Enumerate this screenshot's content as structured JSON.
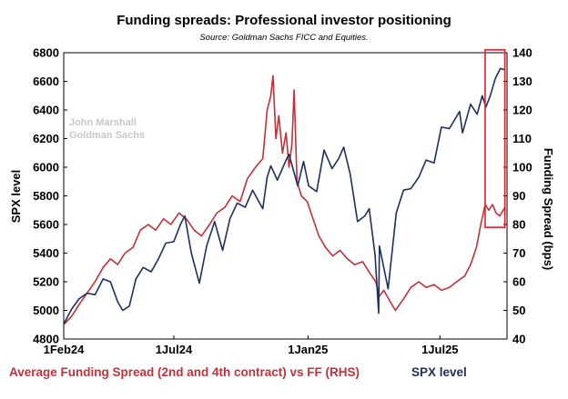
{
  "chart_data": {
    "type": "line",
    "title": "Funding spreads: Professional investor positioning",
    "subtitle": "Source: Goldman Sachs FICC and Equities.",
    "watermark": [
      "John Marshall",
      "Goldman Sachs"
    ],
    "ylabel_left": "SPX level",
    "ylabel_right": "Funding Spread (bps)",
    "ylim_left": [
      4800,
      6800
    ],
    "ylim_right": [
      40,
      140
    ],
    "yticks_left": [
      4800,
      5000,
      5200,
      5400,
      5600,
      5800,
      6000,
      6200,
      6400,
      6600,
      6800
    ],
    "yticks_right": [
      40,
      50,
      60,
      70,
      80,
      90,
      100,
      110,
      120,
      130,
      140
    ],
    "xlim": [
      "2024-02-01",
      "2025-10-01"
    ],
    "xticks": [
      {
        "label": "1Feb24",
        "date": "2024-02-01"
      },
      {
        "label": "1Jul24",
        "date": "2024-07-01"
      },
      {
        "label": "1Jan25",
        "date": "2025-01-01"
      },
      {
        "label": "1Jul25",
        "date": "2025-07-01"
      }
    ],
    "legend": [
      {
        "text": "Average Funding Spread (2nd and 4th contract) vs FF (RHS)",
        "color": "#c0323a"
      },
      {
        "text": "SPX level",
        "color": "#1e2f5c"
      }
    ],
    "highlight_box": {
      "x_from": "2025-09-01",
      "x_to": "2025-09-28",
      "y_right_from": 79,
      "y_right_to": 141,
      "color": "#e0202a"
    },
    "series": [
      {
        "name": "Average Funding Spread (2nd and 4th contract) vs FF (RHS)",
        "axis": "right",
        "color": "#c0323a",
        "points": [
          [
            "2024-02-01",
            45
          ],
          [
            "2024-02-12",
            48
          ],
          [
            "2024-02-22",
            52
          ],
          [
            "2024-03-04",
            56
          ],
          [
            "2024-03-15",
            60
          ],
          [
            "2024-03-26",
            65
          ],
          [
            "2024-04-05",
            68
          ],
          [
            "2024-04-15",
            66
          ],
          [
            "2024-04-25",
            70
          ],
          [
            "2024-05-06",
            72
          ],
          [
            "2024-05-16",
            78
          ],
          [
            "2024-05-27",
            80
          ],
          [
            "2024-06-06",
            78
          ],
          [
            "2024-06-17",
            82
          ],
          [
            "2024-06-27",
            80
          ],
          [
            "2024-07-08",
            84
          ],
          [
            "2024-07-18",
            82
          ],
          [
            "2024-07-29",
            78
          ],
          [
            "2024-08-08",
            76
          ],
          [
            "2024-08-19",
            80
          ],
          [
            "2024-08-29",
            84
          ],
          [
            "2024-09-09",
            86
          ],
          [
            "2024-09-19",
            90
          ],
          [
            "2024-09-30",
            88
          ],
          [
            "2024-10-10",
            96
          ],
          [
            "2024-10-21",
            100
          ],
          [
            "2024-10-31",
            103
          ],
          [
            "2024-11-06",
            120
          ],
          [
            "2024-11-11",
            125
          ],
          [
            "2024-11-14",
            132
          ],
          [
            "2024-11-18",
            110
          ],
          [
            "2024-11-22",
            118
          ],
          [
            "2024-11-27",
            105
          ],
          [
            "2024-12-02",
            112
          ],
          [
            "2024-12-06",
            100
          ],
          [
            "2024-12-10",
            108
          ],
          [
            "2024-12-13",
            127
          ],
          [
            "2024-12-17",
            95
          ],
          [
            "2024-12-23",
            90
          ],
          [
            "2024-12-31",
            88
          ],
          [
            "2025-01-08",
            82
          ],
          [
            "2025-01-16",
            76
          ],
          [
            "2025-01-25",
            72
          ],
          [
            "2025-02-04",
            69
          ],
          [
            "2025-02-14",
            71
          ],
          [
            "2025-02-24",
            68
          ],
          [
            "2025-03-06",
            66
          ],
          [
            "2025-03-17",
            67
          ],
          [
            "2025-03-27",
            63
          ],
          [
            "2025-04-04",
            60
          ],
          [
            "2025-04-09",
            55
          ],
          [
            "2025-04-15",
            57
          ],
          [
            "2025-04-24",
            53
          ],
          [
            "2025-05-01",
            50
          ],
          [
            "2025-05-12",
            54
          ],
          [
            "2025-05-22",
            58
          ],
          [
            "2025-06-02",
            60
          ],
          [
            "2025-06-12",
            58
          ],
          [
            "2025-06-23",
            59
          ],
          [
            "2025-07-03",
            57
          ],
          [
            "2025-07-14",
            58
          ],
          [
            "2025-07-24",
            60
          ],
          [
            "2025-08-04",
            62
          ],
          [
            "2025-08-12",
            66
          ],
          [
            "2025-08-20",
            72
          ],
          [
            "2025-08-26",
            80
          ],
          [
            "2025-09-01",
            87
          ],
          [
            "2025-09-06",
            85
          ],
          [
            "2025-09-11",
            87
          ],
          [
            "2025-09-16",
            84
          ],
          [
            "2025-09-21",
            83
          ],
          [
            "2025-09-28",
            86
          ]
        ]
      },
      {
        "name": "SPX level",
        "axis": "left",
        "color": "#1e2f5c",
        "points": [
          [
            "2024-02-01",
            4905
          ],
          [
            "2024-02-12",
            5010
          ],
          [
            "2024-02-22",
            5080
          ],
          [
            "2024-03-04",
            5120
          ],
          [
            "2024-03-15",
            5110
          ],
          [
            "2024-03-26",
            5220
          ],
          [
            "2024-04-05",
            5200
          ],
          [
            "2024-04-15",
            5060
          ],
          [
            "2024-04-22",
            5000
          ],
          [
            "2024-05-01",
            5030
          ],
          [
            "2024-05-10",
            5220
          ],
          [
            "2024-05-20",
            5300
          ],
          [
            "2024-05-31",
            5270
          ],
          [
            "2024-06-10",
            5360
          ],
          [
            "2024-06-20",
            5470
          ],
          [
            "2024-07-01",
            5480
          ],
          [
            "2024-07-10",
            5600
          ],
          [
            "2024-07-16",
            5660
          ],
          [
            "2024-07-25",
            5400
          ],
          [
            "2024-08-05",
            5190
          ],
          [
            "2024-08-15",
            5450
          ],
          [
            "2024-08-26",
            5620
          ],
          [
            "2024-09-06",
            5420
          ],
          [
            "2024-09-16",
            5640
          ],
          [
            "2024-09-26",
            5750
          ],
          [
            "2024-10-07",
            5720
          ],
          [
            "2024-10-17",
            5840
          ],
          [
            "2024-10-31",
            5710
          ],
          [
            "2024-11-06",
            5930
          ],
          [
            "2024-11-11",
            6010
          ],
          [
            "2024-11-20",
            5910
          ],
          [
            "2024-12-02",
            6050
          ],
          [
            "2024-12-06",
            6090
          ],
          [
            "2024-12-18",
            5870
          ],
          [
            "2024-12-26",
            6040
          ],
          [
            "2025-01-02",
            5870
          ],
          [
            "2025-01-13",
            5830
          ],
          [
            "2025-01-23",
            6120
          ],
          [
            "2025-02-03",
            5990
          ],
          [
            "2025-02-12",
            6060
          ],
          [
            "2025-02-19",
            6140
          ],
          [
            "2025-02-28",
            5950
          ],
          [
            "2025-03-10",
            5620
          ],
          [
            "2025-03-20",
            5660
          ],
          [
            "2025-03-26",
            5710
          ],
          [
            "2025-04-03",
            5390
          ],
          [
            "2025-04-08",
            4980
          ],
          [
            "2025-04-09",
            5450
          ],
          [
            "2025-04-21",
            5150
          ],
          [
            "2025-05-02",
            5680
          ],
          [
            "2025-05-12",
            5840
          ],
          [
            "2025-05-22",
            5850
          ],
          [
            "2025-06-02",
            5930
          ],
          [
            "2025-06-12",
            6050
          ],
          [
            "2025-06-23",
            6030
          ],
          [
            "2025-07-03",
            6280
          ],
          [
            "2025-07-14",
            6270
          ],
          [
            "2025-07-28",
            6390
          ],
          [
            "2025-08-01",
            6240
          ],
          [
            "2025-08-12",
            6440
          ],
          [
            "2025-08-21",
            6370
          ],
          [
            "2025-08-28",
            6500
          ],
          [
            "2025-09-02",
            6420
          ],
          [
            "2025-09-08",
            6500
          ],
          [
            "2025-09-15",
            6620
          ],
          [
            "2025-09-22",
            6690
          ],
          [
            "2025-09-28",
            6680
          ]
        ]
      }
    ]
  }
}
